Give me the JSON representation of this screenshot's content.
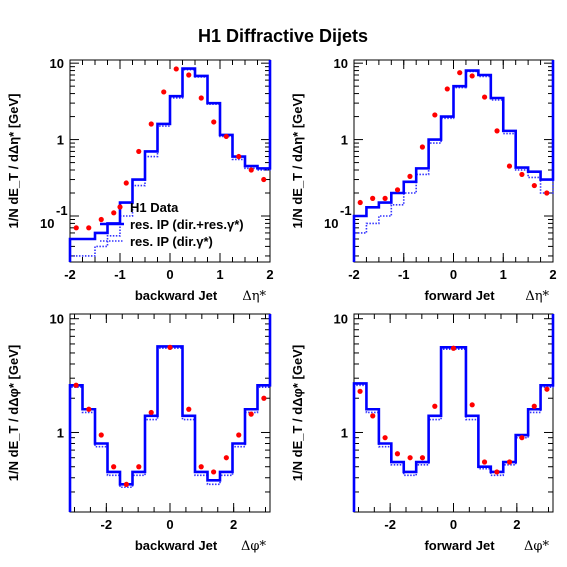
{
  "figure_title": "H1 Diffractive Dijets",
  "colors": {
    "data": "#ff0000",
    "res_solid": "#0000ff",
    "res_dotted": "#3333ff",
    "axis": "#000000"
  },
  "legend": {
    "items": [
      "H1 Data",
      "res. IP (dir.+res.γ*)",
      "res. IP (dir.γ*)"
    ]
  },
  "chart_data": [
    {
      "type": "step+scatter",
      "ylabel": "1/N dE_T / dΔη* [GeV]",
      "xlabel": "Δη*",
      "panel_label": "backward Jet",
      "xlim": [
        -2,
        2
      ],
      "ylim": [
        0.025,
        11
      ],
      "yscale": "log",
      "xticks": [
        -2,
        -1,
        0,
        1,
        2
      ],
      "yticks": [
        {
          "v": 10,
          "label": "10"
        },
        {
          "v": 1,
          "label": "1"
        },
        {
          "v": 0.1,
          "label": "10-1"
        }
      ],
      "bin_edges": [
        -2.0,
        -1.75,
        -1.5,
        -1.25,
        -1.0,
        -0.75,
        -0.5,
        -0.25,
        0.0,
        0.25,
        0.5,
        0.75,
        1.0,
        1.25,
        1.5,
        1.75,
        2.0
      ],
      "series": [
        {
          "name": "H1 Data",
          "style": "points",
          "x": [
            -1.875,
            -1.625,
            -1.375,
            -1.125,
            -0.875,
            -0.625,
            -0.375,
            -0.125,
            0.125,
            0.375,
            0.625,
            0.875,
            1.125,
            1.375,
            1.625,
            1.875
          ],
          "values": [
            0.07,
            0.07,
            0.09,
            0.11,
            0.27,
            0.7,
            1.6,
            4.2,
            8.4,
            7.0,
            3.5,
            1.7,
            1.1,
            0.6,
            0.4,
            0.3
          ]
        },
        {
          "name": "res. IP (dir.+res.γ*)",
          "style": "solid-step",
          "values": [
            0.05,
            0.05,
            0.06,
            0.08,
            0.15,
            0.3,
            0.7,
            1.6,
            3.7,
            8.5,
            6.8,
            3.0,
            1.15,
            0.6,
            0.45,
            0.42
          ]
        },
        {
          "name": "res. IP (dir.γ*)",
          "style": "dotted-step",
          "values": [
            0.03,
            0.03,
            0.04,
            0.055,
            0.1,
            0.25,
            0.6,
            1.5,
            3.5,
            8.2,
            6.6,
            2.9,
            1.1,
            0.55,
            0.42,
            0.4
          ]
        }
      ]
    },
    {
      "type": "step+scatter",
      "ylabel": "1/N dE_T / dΔη* [GeV]",
      "xlabel": "Δη*",
      "panel_label": "forward Jet",
      "xlim": [
        -2,
        2
      ],
      "ylim": [
        0.025,
        11
      ],
      "yscale": "log",
      "xticks": [
        -2,
        -1,
        0,
        1,
        2
      ],
      "yticks": [
        {
          "v": 10,
          "label": "10"
        },
        {
          "v": 1,
          "label": "1"
        },
        {
          "v": 0.1,
          "label": "10-1"
        }
      ],
      "bin_edges": [
        -2.0,
        -1.75,
        -1.5,
        -1.25,
        -1.0,
        -0.75,
        -0.5,
        -0.25,
        0.0,
        0.25,
        0.5,
        0.75,
        1.0,
        1.25,
        1.5,
        1.75,
        2.0
      ],
      "series": [
        {
          "name": "H1 Data",
          "style": "points",
          "x": [
            -1.875,
            -1.625,
            -1.375,
            -1.125,
            -0.875,
            -0.625,
            -0.375,
            -0.125,
            0.125,
            0.375,
            0.625,
            0.875,
            1.125,
            1.375,
            1.625,
            1.875
          ],
          "values": [
            0.15,
            0.17,
            0.17,
            0.22,
            0.33,
            0.8,
            2.1,
            4.6,
            7.5,
            6.8,
            3.6,
            1.3,
            0.45,
            0.35,
            0.25,
            0.2
          ]
        },
        {
          "name": "res. IP (dir.+res.γ*)",
          "style": "solid-step",
          "values": [
            0.1,
            0.13,
            0.15,
            0.2,
            0.28,
            0.42,
            1.0,
            2.0,
            5.0,
            8.0,
            7.0,
            3.5,
            1.3,
            0.43,
            0.38,
            0.3
          ]
        },
        {
          "name": "res. IP (dir.γ*)",
          "style": "dotted-step",
          "values": [
            0.06,
            0.08,
            0.1,
            0.14,
            0.2,
            0.35,
            0.9,
            1.9,
            4.8,
            7.8,
            6.7,
            3.3,
            1.2,
            0.4,
            0.32,
            0.2
          ]
        }
      ]
    },
    {
      "type": "step+scatter",
      "ylabel": "1/N dE_T / dΔφ* [GeV]",
      "xlabel": "Δφ*",
      "panel_label": "backward Jet",
      "xlim": [
        -3.1416,
        3.1416
      ],
      "ylim": [
        0.2,
        11
      ],
      "yscale": "log",
      "xticks": [
        -2,
        0,
        2
      ],
      "yticks": [
        {
          "v": 10,
          "label": "10"
        },
        {
          "v": 1,
          "label": "1"
        }
      ],
      "bin_edges": [
        -3.1416,
        -2.7489,
        -2.3562,
        -1.9635,
        -1.5708,
        -1.1781,
        -0.7854,
        -0.3927,
        0.3927,
        0.7854,
        1.1781,
        1.5708,
        1.9635,
        2.3562,
        2.7489,
        3.1416
      ],
      "series": [
        {
          "name": "H1 Data",
          "style": "points",
          "x": [
            -2.95,
            -2.55,
            -2.16,
            -1.77,
            -1.37,
            -0.98,
            -0.59,
            0.0,
            0.59,
            0.98,
            1.37,
            1.77,
            2.16,
            2.55,
            2.95
          ],
          "values": [
            2.6,
            1.6,
            0.95,
            0.5,
            0.35,
            0.5,
            1.5,
            5.6,
            1.6,
            0.5,
            0.45,
            0.6,
            0.95,
            1.45,
            2.0
          ]
        },
        {
          "name": "res. IP (dir.+res.γ*)",
          "style": "solid-step",
          "values": [
            2.6,
            1.6,
            0.8,
            0.45,
            0.35,
            0.45,
            1.4,
            5.7,
            1.4,
            0.45,
            0.38,
            0.45,
            0.8,
            1.6,
            2.6
          ]
        },
        {
          "name": "res. IP (dir.γ*)",
          "style": "dotted-step",
          "values": [
            2.5,
            1.5,
            0.75,
            0.42,
            0.33,
            0.42,
            1.3,
            5.5,
            1.3,
            0.42,
            0.35,
            0.42,
            0.75,
            1.5,
            2.5
          ]
        }
      ]
    },
    {
      "type": "step+scatter",
      "ylabel": "1/N dE_T / dΔφ* [GeV]",
      "xlabel": "Δφ*",
      "panel_label": "forward Jet",
      "xlim": [
        -3.1416,
        3.1416
      ],
      "ylim": [
        0.2,
        11
      ],
      "yscale": "log",
      "xticks": [
        -2,
        0,
        2
      ],
      "yticks": [
        {
          "v": 10,
          "label": "10"
        },
        {
          "v": 1,
          "label": "1"
        }
      ],
      "bin_edges": [
        -3.1416,
        -2.7489,
        -2.3562,
        -1.9635,
        -1.5708,
        -1.1781,
        -0.7854,
        -0.3927,
        0.3927,
        0.7854,
        1.1781,
        1.5708,
        1.9635,
        2.3562,
        2.7489,
        3.1416
      ],
      "series": [
        {
          "name": "H1 Data",
          "style": "points",
          "x": [
            -2.95,
            -2.55,
            -2.16,
            -1.77,
            -1.37,
            -0.98,
            -0.59,
            0.0,
            0.59,
            0.98,
            1.37,
            1.77,
            2.16,
            2.55,
            2.95
          ],
          "values": [
            2.3,
            1.4,
            0.9,
            0.65,
            0.6,
            0.6,
            1.7,
            5.5,
            1.75,
            0.55,
            0.45,
            0.55,
            0.9,
            1.7,
            2.4
          ]
        },
        {
          "name": "res. IP (dir.+res.γ*)",
          "style": "solid-step",
          "values": [
            2.7,
            1.6,
            0.8,
            0.55,
            0.45,
            0.55,
            1.4,
            5.6,
            1.4,
            0.5,
            0.45,
            0.55,
            0.95,
            1.6,
            2.6
          ]
        },
        {
          "name": "res. IP (dir.γ*)",
          "style": "dotted-step",
          "values": [
            2.6,
            1.5,
            0.75,
            0.52,
            0.42,
            0.52,
            1.3,
            5.4,
            1.3,
            0.48,
            0.42,
            0.52,
            0.9,
            1.5,
            2.5
          ]
        }
      ]
    }
  ]
}
